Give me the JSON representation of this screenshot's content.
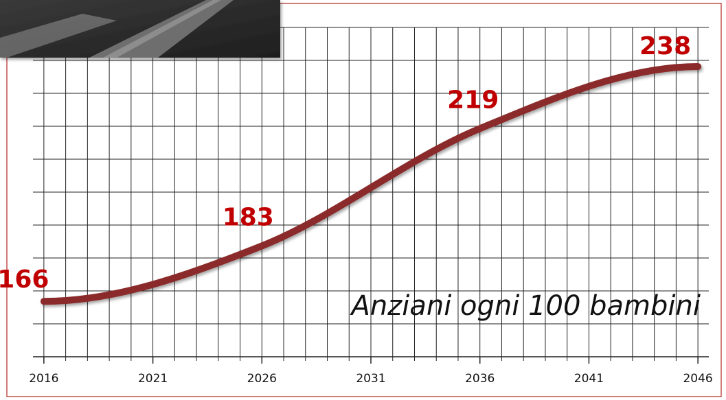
{
  "chart_data": {
    "type": "line",
    "annotation": "Anziani ogni 100 bambini",
    "x": [
      2016,
      2026,
      2036,
      2046
    ],
    "values": [
      166,
      183,
      219,
      238
    ],
    "color": "#8b2b2b",
    "xlim": [
      2015.5,
      2046.5
    ],
    "xticks": [
      2016,
      2021,
      2026,
      2031,
      2036,
      2041,
      2046
    ],
    "ylim": [
      149,
      250
    ],
    "grid": true
  }
}
